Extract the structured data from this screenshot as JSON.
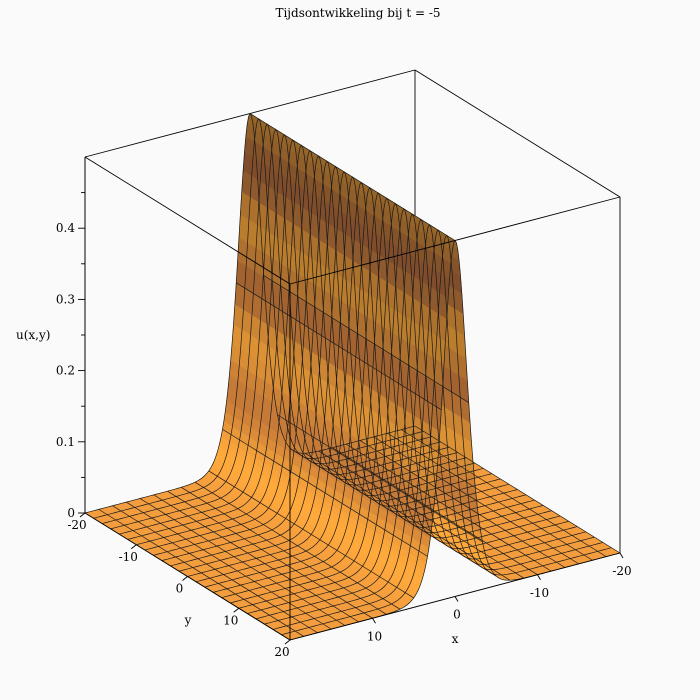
{
  "chart_data": {
    "type": "surface3d",
    "title": "Tijdsontwikkeling bij t = -5",
    "xlabel": "x",
    "ylabel": "y",
    "zlabel": "u(x,y)",
    "xlim": [
      -20,
      20
    ],
    "ylim": [
      -20,
      20
    ],
    "zlim": [
      0,
      0.5
    ],
    "x_ticks": [
      "-20",
      "-10",
      "0",
      "10"
    ],
    "y_ticks": [
      "-20",
      "-10",
      "0",
      "10",
      "20"
    ],
    "z_ticks": [
      "0",
      "0.1",
      "0.2",
      "0.3",
      "0.4"
    ],
    "time": -5,
    "peak": 0.5,
    "ridge_center_y": 0,
    "ridge_width": 2,
    "surface_color": "#f39c3c",
    "mesh_color": "#1a1a1a"
  }
}
